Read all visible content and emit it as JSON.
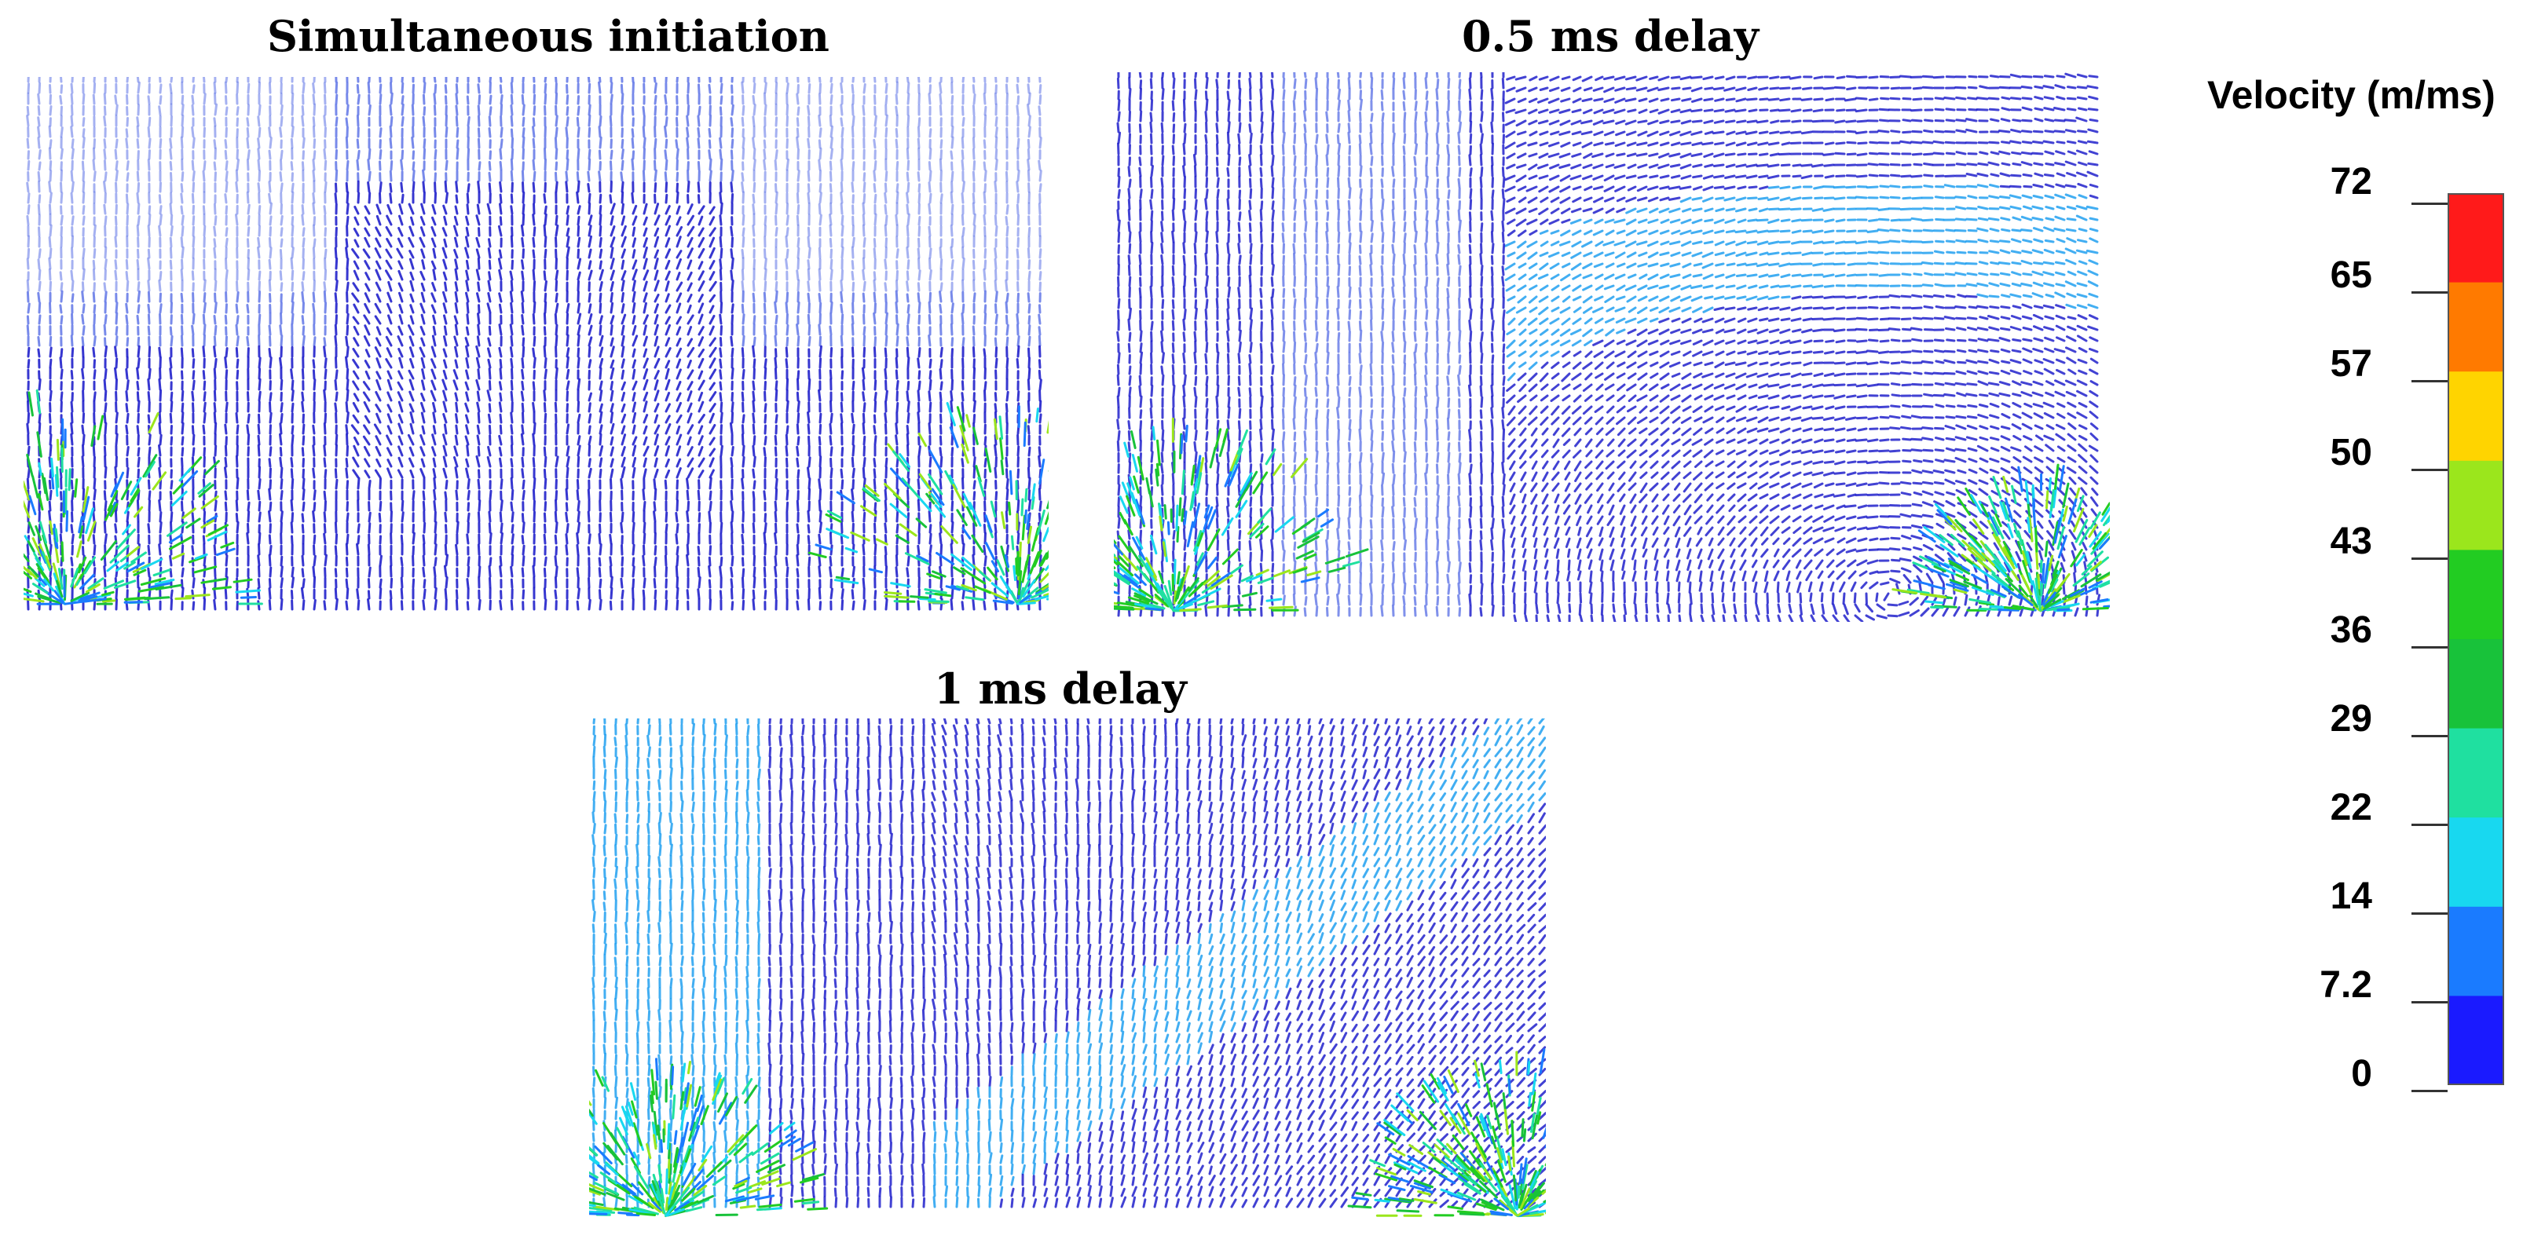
{
  "panels": [
    {
      "id": "p1",
      "title": "Simultaneous initiation"
    },
    {
      "id": "p2",
      "title": "0.5 ms delay"
    },
    {
      "id": "p3",
      "title": "1 ms delay"
    }
  ],
  "legend": {
    "title": "Velocity (m/ms)",
    "ticks": [
      "72",
      "65",
      "57",
      "50",
      "43",
      "36",
      "29",
      "22",
      "14",
      "7.2",
      "0"
    ],
    "colors": [
      "#ff1a1a",
      "#ff7a00",
      "#ffd400",
      "#9be61c",
      "#22cc22",
      "#18c23a",
      "#1fe0a0",
      "#18d8f0",
      "#1a7bff",
      "#1a1aff"
    ]
  }
}
